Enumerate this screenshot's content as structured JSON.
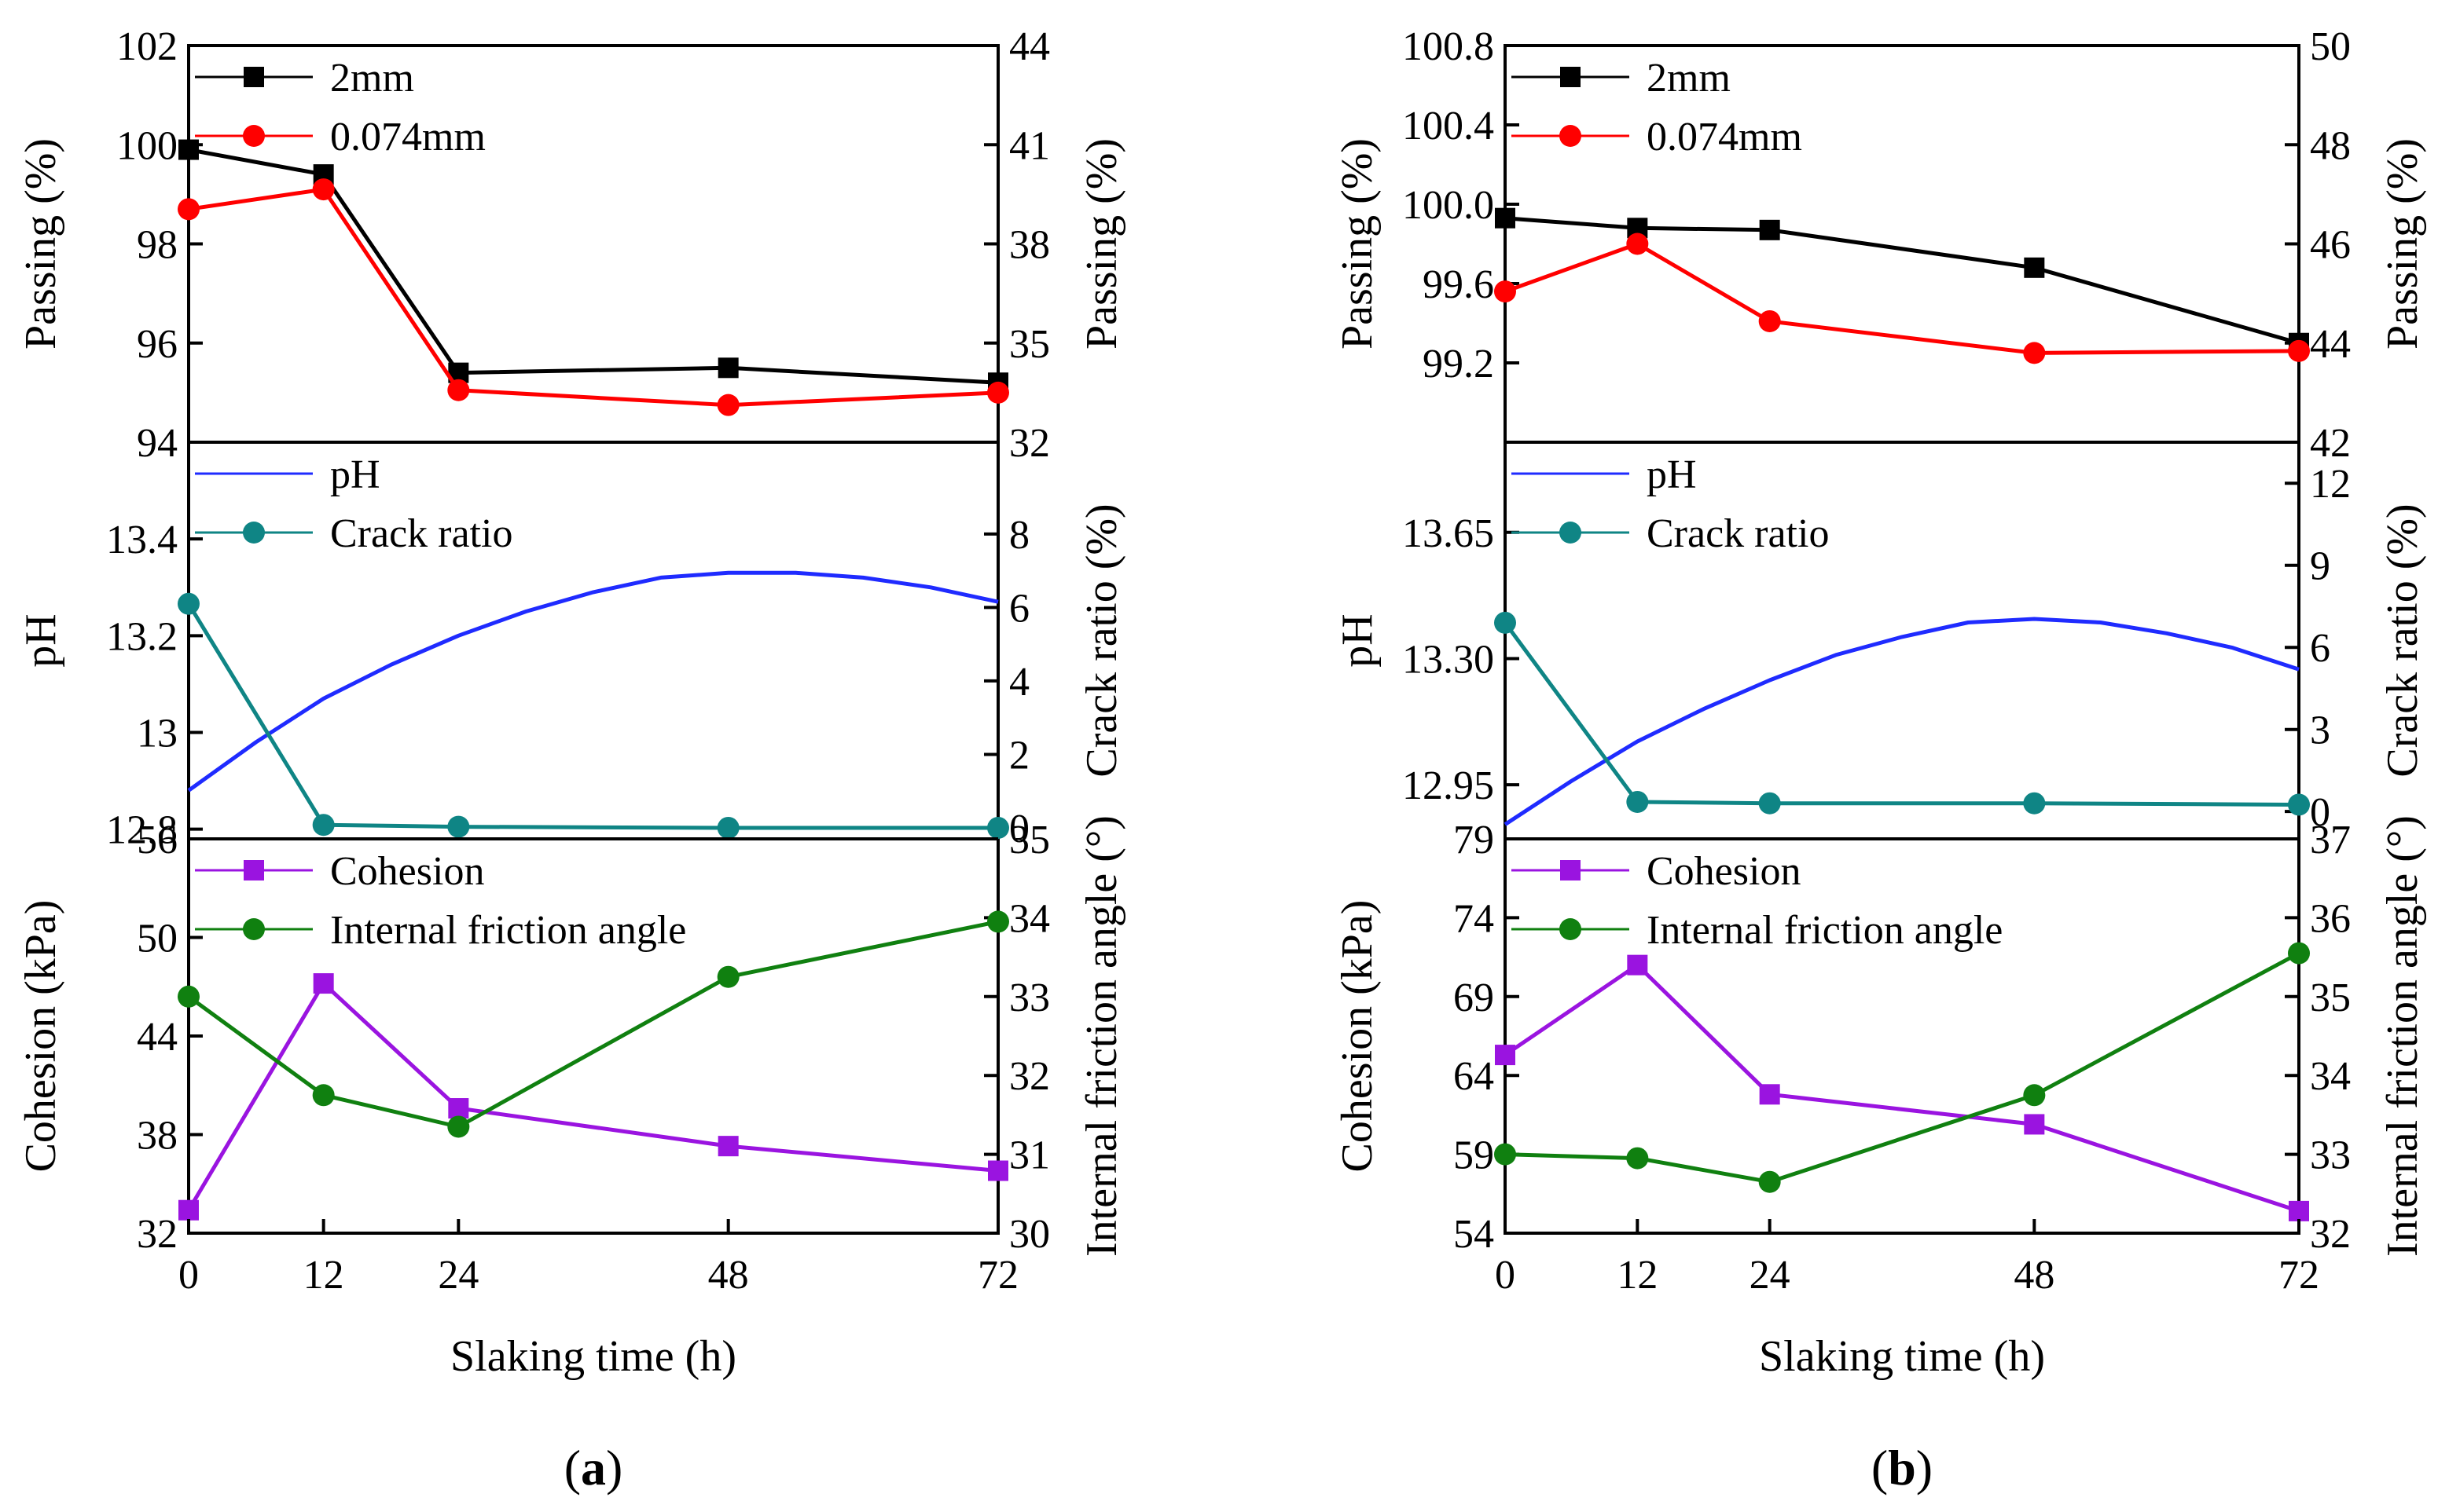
{
  "chart_data": [
    {
      "panel": "a",
      "caption": {
        "open": "(",
        "letter": "a",
        "close": ")"
      },
      "x": {
        "label": "Slaking time (h)",
        "ticks": [
          0,
          12,
          24,
          48,
          72
        ],
        "values": [
          0,
          12,
          24,
          48,
          72
        ]
      },
      "subplots": [
        {
          "id": "a-passing",
          "type": "line",
          "left_axis": {
            "label": "Passing (%)",
            "ticks": [
              "94",
              "96",
              "98",
              "100",
              "102"
            ],
            "range": [
              94,
              102
            ]
          },
          "right_axis": {
            "label": "Passing (%)",
            "ticks": [
              "32",
              "35",
              "38",
              "41",
              "44"
            ],
            "range": [
              32,
              44
            ]
          },
          "series": [
            {
              "name": "2mm",
              "axis": "left",
              "color": "#000000",
              "marker": "square",
              "values": [
                99.9,
                99.4,
                95.4,
                95.5,
                95.2
              ]
            },
            {
              "name": "0.074mm",
              "axis": "left",
              "color": "#ff0000",
              "marker": "circle",
              "values": [
                98.7,
                99.1,
                95.05,
                94.75,
                95.0
              ]
            }
          ]
        },
        {
          "id": "a-ph",
          "type": "line",
          "left_axis": {
            "label": "pH",
            "ticks": [
              "12.8",
              "13",
              "13.2",
              "13.4"
            ],
            "range": [
              12.78,
              13.6
            ]
          },
          "right_axis": {
            "label": "Crack ratio (%)",
            "ticks": [
              "0",
              "2",
              "4",
              "6",
              "8"
            ],
            "range": [
              -0.3,
              10.5
            ]
          },
          "series": [
            {
              "name": "pH",
              "axis": "left",
              "color": "#1f2bff",
              "marker": "none",
              "smooth": true,
              "x": [
                0,
                6,
                12,
                18,
                24,
                30,
                36,
                42,
                48,
                54,
                60,
                66,
                72
              ],
              "values": [
                12.88,
                12.98,
                13.07,
                13.14,
                13.2,
                13.25,
                13.29,
                13.32,
                13.33,
                13.33,
                13.32,
                13.3,
                13.27
              ]
            },
            {
              "name": "Crack ratio",
              "axis": "right",
              "color": "#0f8585",
              "marker": "circle",
              "values": [
                6.1,
                0.08,
                0.03,
                0.0,
                0.0
              ]
            }
          ]
        },
        {
          "id": "a-shear",
          "type": "line",
          "left_axis": {
            "label": "Cohesion (kPa)",
            "ticks": [
              "32",
              "38",
              "44",
              "50",
              "56"
            ],
            "range": [
              32,
              56
            ]
          },
          "right_axis": {
            "label": "Internal friction angle (°)",
            "ticks": [
              "30",
              "31",
              "32",
              "33",
              "34",
              "35"
            ],
            "range": [
              30,
              35
            ]
          },
          "series": [
            {
              "name": "Cohesion",
              "axis": "left",
              "color": "#9a14e0",
              "marker": "square",
              "values": [
                33.4,
                47.2,
                39.6,
                37.3,
                35.8
              ]
            },
            {
              "name": "Internal friction angle",
              "axis": "right",
              "color": "#108010",
              "marker": "circle",
              "values": [
                33.0,
                31.75,
                31.35,
                33.25,
                33.95
              ]
            }
          ]
        }
      ]
    },
    {
      "panel": "b",
      "caption": {
        "open": "(",
        "letter": "b",
        "close": ")"
      },
      "x": {
        "label": "Slaking time (h)",
        "ticks": [
          0,
          12,
          24,
          48,
          72
        ],
        "values": [
          0,
          12,
          24,
          48,
          72
        ]
      },
      "subplots": [
        {
          "id": "b-passing",
          "type": "line",
          "left_axis": {
            "label": "Passing (%)",
            "ticks": [
              "99.2",
              "99.6",
              "100.0",
              "100.4",
              "100.8"
            ],
            "range": [
              98.8,
              100.8
            ]
          },
          "right_axis": {
            "label": "Passing (%)",
            "ticks": [
              "42",
              "44",
              "46",
              "48",
              "50"
            ],
            "range": [
              42,
              50
            ]
          },
          "series": [
            {
              "name": "2mm",
              "axis": "left",
              "color": "#000000",
              "marker": "square",
              "values": [
                99.93,
                99.88,
                99.87,
                99.68,
                99.3
              ]
            },
            {
              "name": "0.074mm",
              "axis": "left",
              "color": "#ff0000",
              "marker": "circle",
              "values": [
                99.56,
                99.8,
                99.41,
                99.25,
                99.26
              ]
            }
          ]
        },
        {
          "id": "b-ph",
          "type": "line",
          "left_axis": {
            "label": "pH",
            "ticks": [
              "12.95",
              "13.30",
              "13.65"
            ],
            "range": [
              12.8,
              13.9
            ]
          },
          "right_axis": {
            "label": "Crack ratio (%)",
            "ticks": [
              "0",
              "3",
              "6",
              "9",
              "12"
            ],
            "range": [
              -1.0,
              13.5
            ]
          },
          "series": [
            {
              "name": "pH",
              "axis": "left",
              "color": "#1f2bff",
              "marker": "none",
              "smooth": true,
              "x": [
                0,
                6,
                12,
                18,
                24,
                30,
                36,
                42,
                48,
                54,
                60,
                66,
                72
              ],
              "values": [
                12.84,
                12.96,
                13.07,
                13.16,
                13.24,
                13.31,
                13.36,
                13.4,
                13.41,
                13.4,
                13.37,
                13.33,
                13.27
              ]
            },
            {
              "name": "Crack ratio",
              "axis": "right",
              "color": "#0f8585",
              "marker": "circle",
              "values": [
                6.9,
                0.35,
                0.3,
                0.3,
                0.25
              ]
            }
          ]
        },
        {
          "id": "b-shear",
          "type": "line",
          "left_axis": {
            "label": "Cohesion (kPa)",
            "ticks": [
              "54",
              "59",
              "64",
              "69",
              "74",
              "79"
            ],
            "range": [
              54,
              79
            ]
          },
          "right_axis": {
            "label": "Internal friction angle (°)",
            "ticks": [
              "32",
              "33",
              "34",
              "35",
              "36",
              "37"
            ],
            "range": [
              32,
              37
            ]
          },
          "series": [
            {
              "name": "Cohesion",
              "axis": "left",
              "color": "#9a14e0",
              "marker": "square",
              "values": [
                65.3,
                71.0,
                62.8,
                60.9,
                55.4
              ]
            },
            {
              "name": "Internal friction angle",
              "axis": "right",
              "color": "#108010",
              "marker": "circle",
              "values": [
                33.0,
                32.95,
                32.65,
                33.75,
                35.55
              ]
            }
          ]
        }
      ]
    }
  ]
}
